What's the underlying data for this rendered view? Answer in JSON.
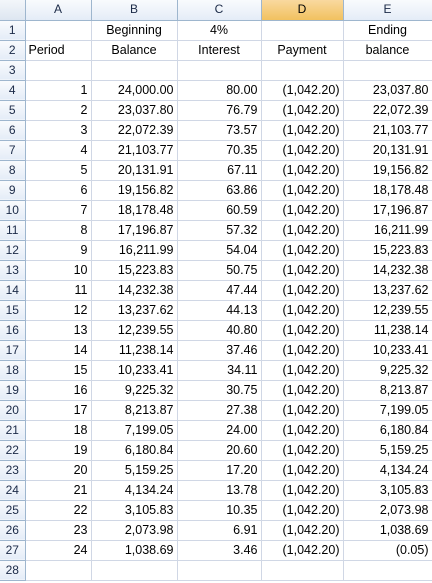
{
  "columns": [
    "A",
    "B",
    "C",
    "D",
    "E"
  ],
  "selected_column": "D",
  "header_rows": [
    {
      "row": "1",
      "cells": [
        "",
        "Beginning",
        "4%",
        "",
        "Ending"
      ]
    },
    {
      "row": "2",
      "cells": [
        "Period",
        "Balance",
        "Interest",
        "Payment",
        "balance"
      ]
    },
    {
      "row": "3",
      "cells": [
        "",
        "",
        "",
        "",
        ""
      ]
    }
  ],
  "data_rows": [
    {
      "row": "4",
      "cells": [
        "1",
        "24,000.00",
        "80.00",
        "(1,042.20)",
        "23,037.80"
      ]
    },
    {
      "row": "5",
      "cells": [
        "2",
        "23,037.80",
        "76.79",
        "(1,042.20)",
        "22,072.39"
      ]
    },
    {
      "row": "6",
      "cells": [
        "3",
        "22,072.39",
        "73.57",
        "(1,042.20)",
        "21,103.77"
      ]
    },
    {
      "row": "7",
      "cells": [
        "4",
        "21,103.77",
        "70.35",
        "(1,042.20)",
        "20,131.91"
      ]
    },
    {
      "row": "8",
      "cells": [
        "5",
        "20,131.91",
        "67.11",
        "(1,042.20)",
        "19,156.82"
      ]
    },
    {
      "row": "9",
      "cells": [
        "6",
        "19,156.82",
        "63.86",
        "(1,042.20)",
        "18,178.48"
      ]
    },
    {
      "row": "10",
      "cells": [
        "7",
        "18,178.48",
        "60.59",
        "(1,042.20)",
        "17,196.87"
      ]
    },
    {
      "row": "11",
      "cells": [
        "8",
        "17,196.87",
        "57.32",
        "(1,042.20)",
        "16,211.99"
      ]
    },
    {
      "row": "12",
      "cells": [
        "9",
        "16,211.99",
        "54.04",
        "(1,042.20)",
        "15,223.83"
      ]
    },
    {
      "row": "13",
      "cells": [
        "10",
        "15,223.83",
        "50.75",
        "(1,042.20)",
        "14,232.38"
      ]
    },
    {
      "row": "14",
      "cells": [
        "11",
        "14,232.38",
        "47.44",
        "(1,042.20)",
        "13,237.62"
      ]
    },
    {
      "row": "15",
      "cells": [
        "12",
        "13,237.62",
        "44.13",
        "(1,042.20)",
        "12,239.55"
      ]
    },
    {
      "row": "16",
      "cells": [
        "13",
        "12,239.55",
        "40.80",
        "(1,042.20)",
        "11,238.14"
      ]
    },
    {
      "row": "17",
      "cells": [
        "14",
        "11,238.14",
        "37.46",
        "(1,042.20)",
        "10,233.41"
      ]
    },
    {
      "row": "18",
      "cells": [
        "15",
        "10,233.41",
        "34.11",
        "(1,042.20)",
        "9,225.32"
      ]
    },
    {
      "row": "19",
      "cells": [
        "16",
        "9,225.32",
        "30.75",
        "(1,042.20)",
        "8,213.87"
      ]
    },
    {
      "row": "20",
      "cells": [
        "17",
        "8,213.87",
        "27.38",
        "(1,042.20)",
        "7,199.05"
      ]
    },
    {
      "row": "21",
      "cells": [
        "18",
        "7,199.05",
        "24.00",
        "(1,042.20)",
        "6,180.84"
      ]
    },
    {
      "row": "22",
      "cells": [
        "19",
        "6,180.84",
        "20.60",
        "(1,042.20)",
        "5,159.25"
      ]
    },
    {
      "row": "23",
      "cells": [
        "20",
        "5,159.25",
        "17.20",
        "(1,042.20)",
        "4,134.24"
      ]
    },
    {
      "row": "24",
      "cells": [
        "21",
        "4,134.24",
        "13.78",
        "(1,042.20)",
        "3,105.83"
      ]
    },
    {
      "row": "25",
      "cells": [
        "22",
        "3,105.83",
        "10.35",
        "(1,042.20)",
        "2,073.98"
      ]
    },
    {
      "row": "26",
      "cells": [
        "23",
        "2,073.98",
        "6.91",
        "(1,042.20)",
        "1,038.69"
      ]
    },
    {
      "row": "27",
      "cells": [
        "24",
        "1,038.69",
        "3.46",
        "(1,042.20)",
        "(0.05)"
      ]
    },
    {
      "row": "28",
      "cells": [
        "",
        "",
        "",
        "",
        ""
      ]
    }
  ]
}
